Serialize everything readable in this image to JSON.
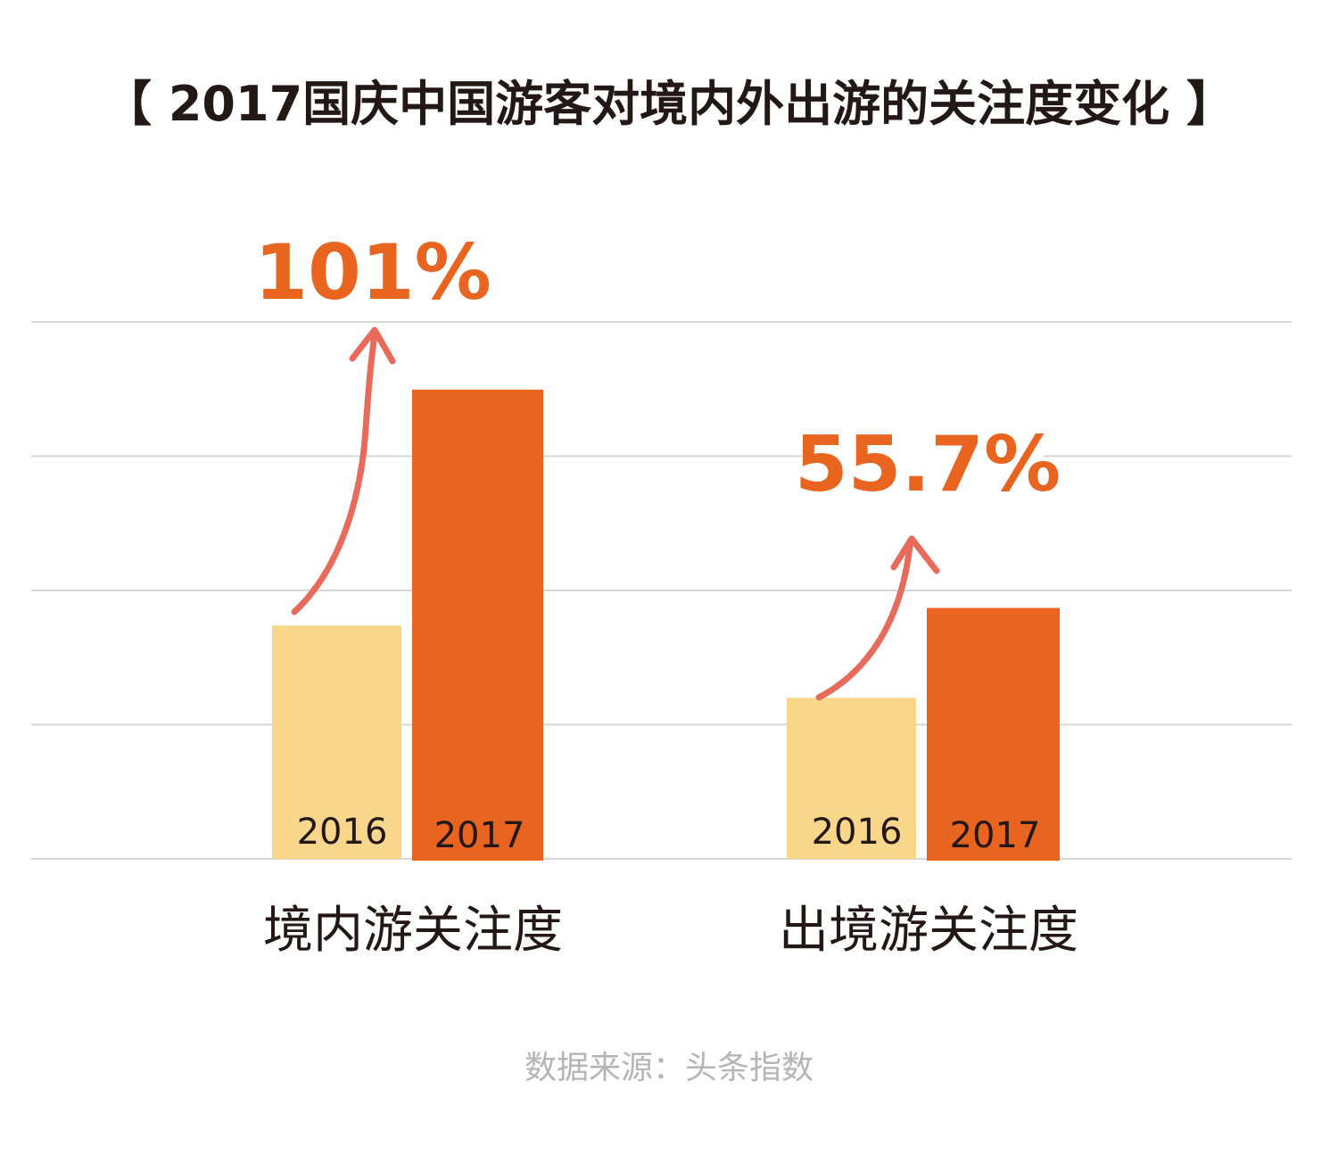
{
  "title": "【 2017国庆中国游客对境内外出游的关注度变化 】",
  "source": "数据来源：头条指数",
  "colors": {
    "y2016": "#f8d78a",
    "y2017": "#e9641e",
    "arrow": "#e86a5a",
    "grid": "#d7d7d7",
    "text": "#231815"
  },
  "chart_data": {
    "type": "bar",
    "title": "【 2017国庆中国游客对境内外出游的关注度变化 】",
    "categories": [
      "境内游关注度",
      "出境游关注度"
    ],
    "series": [
      {
        "name": "2016",
        "values": [
          100,
          69
        ]
      },
      {
        "name": "2017",
        "values": [
          201,
          107.5
        ]
      }
    ],
    "annotations": [
      "101%",
      "55.7%"
    ],
    "ylim": [
      0,
      230
    ],
    "grid": true,
    "legend": "none"
  }
}
